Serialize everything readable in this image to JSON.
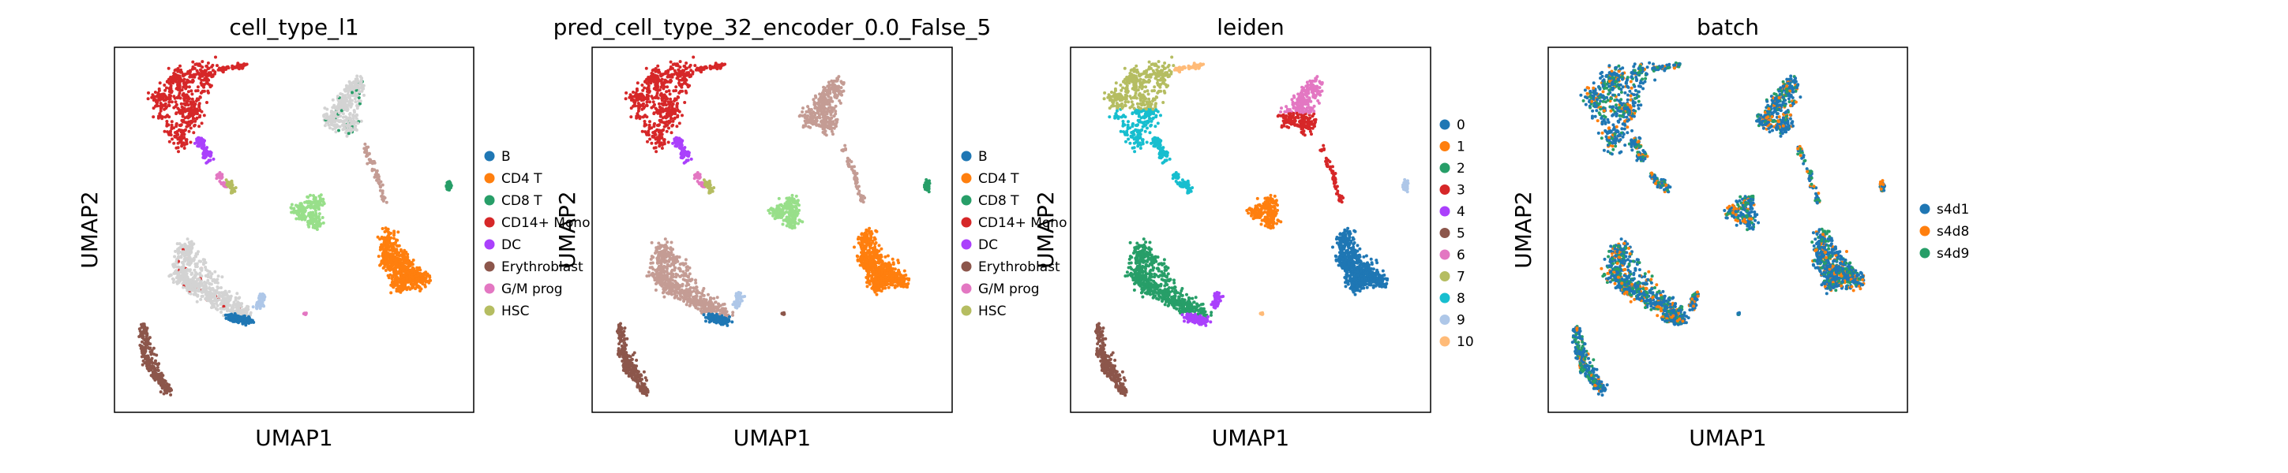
{
  "chart_data": [
    {
      "type": "scatter",
      "title": "cell_type_l1",
      "xlabel": "UMAP1",
      "ylabel": "UMAP2",
      "grid": false,
      "legend_position": "right",
      "legend": [
        {
          "label": "B",
          "color": "#1f77b4"
        },
        {
          "label": "CD4 T",
          "color": "#ff7f0e"
        },
        {
          "label": "CD8 T",
          "color": "#279e68"
        },
        {
          "label": "CD14+ Mono",
          "color": "#d62728"
        },
        {
          "label": "DC",
          "color": "#aa40fc"
        },
        {
          "label": "Erythroblast",
          "color": "#8c564b"
        },
        {
          "label": "G/M prog",
          "color": "#e377c2"
        },
        {
          "label": "HSC",
          "color": "#b5bd61"
        }
      ]
    },
    {
      "type": "scatter",
      "title": "pred_cell_type_32_encoder_0.0_False_5",
      "xlabel": "UMAP1",
      "ylabel": "UMAP2",
      "grid": false,
      "legend_position": "right",
      "legend": [
        {
          "label": "B",
          "color": "#1f77b4"
        },
        {
          "label": "CD4 T",
          "color": "#ff7f0e"
        },
        {
          "label": "CD8 T",
          "color": "#279e68"
        },
        {
          "label": "CD14+ Mono",
          "color": "#d62728"
        },
        {
          "label": "DC",
          "color": "#aa40fc"
        },
        {
          "label": "Erythroblast",
          "color": "#8c564b"
        },
        {
          "label": "G/M prog",
          "color": "#e377c2"
        },
        {
          "label": "HSC",
          "color": "#b5bd61"
        }
      ]
    },
    {
      "type": "scatter",
      "title": "leiden",
      "xlabel": "UMAP1",
      "ylabel": "UMAP2",
      "grid": false,
      "legend_position": "right",
      "legend": [
        {
          "label": "0",
          "color": "#1f77b4"
        },
        {
          "label": "1",
          "color": "#ff7f0e"
        },
        {
          "label": "2",
          "color": "#279e68"
        },
        {
          "label": "3",
          "color": "#d62728"
        },
        {
          "label": "4",
          "color": "#aa40fc"
        },
        {
          "label": "5",
          "color": "#8c564b"
        },
        {
          "label": "6",
          "color": "#e377c2"
        },
        {
          "label": "7",
          "color": "#b5bd61"
        },
        {
          "label": "8",
          "color": "#17becf"
        },
        {
          "label": "9",
          "color": "#aec7e8"
        },
        {
          "label": "10",
          "color": "#ffbb78"
        }
      ]
    },
    {
      "type": "scatter",
      "title": "batch",
      "xlabel": "UMAP1",
      "ylabel": "UMAP2",
      "grid": false,
      "legend_position": "right",
      "legend": [
        {
          "label": "s4d1",
          "color": "#1f77b4"
        },
        {
          "label": "s4d8",
          "color": "#ff7f0e"
        },
        {
          "label": "s4d9",
          "color": "#279e68"
        }
      ]
    }
  ],
  "colors": {
    "unlabeled_gray": "#d3d3d3",
    "brown_pink": "#c49c94",
    "light_green": "#98df8a"
  }
}
